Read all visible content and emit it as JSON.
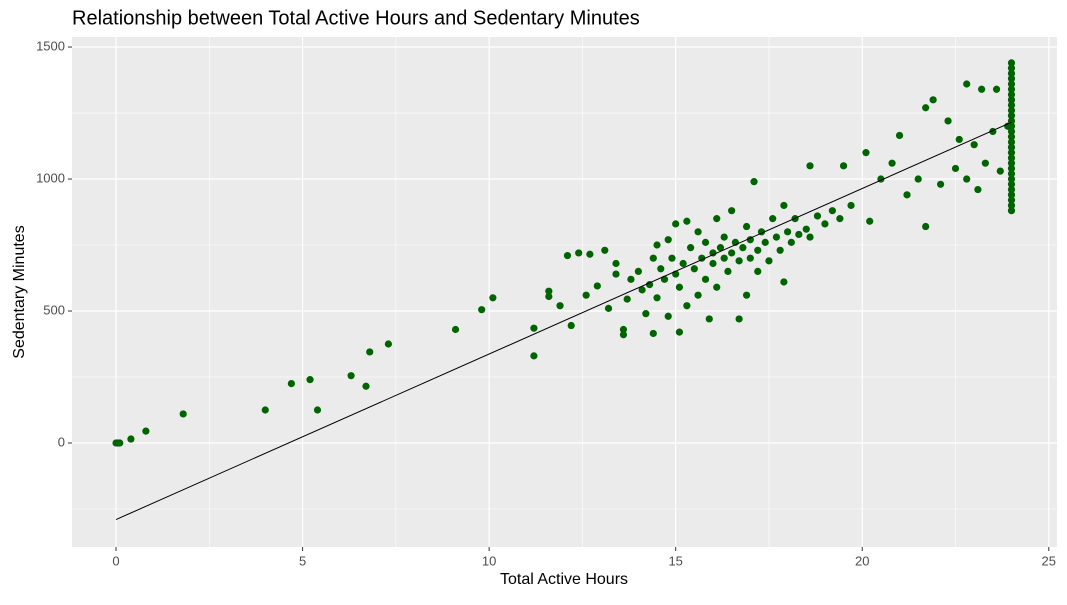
{
  "chart_data": {
    "type": "scatter",
    "title": "Relationship between Total Active Hours and Sedentary Minutes",
    "x_label": "Total Active Hours",
    "y_label": "Sedentary Minutes",
    "xlim": [
      -1.18,
      25.22
    ],
    "ylim": [
      -394,
      1538
    ],
    "xticks": [
      0,
      5,
      10,
      15,
      20,
      25
    ],
    "yticks": [
      0,
      500,
      1000,
      1500
    ],
    "grid": true,
    "series": [
      {
        "color": "#006400",
        "x": [
          0,
          0.05,
          0.1,
          0.4,
          0.8,
          1.8,
          4,
          4.7,
          5.2,
          5.4,
          6.3,
          6.7,
          6.8,
          7.3,
          9.1,
          9.8,
          10.1,
          11.2,
          11.2,
          11.6,
          11.6,
          11.9,
          12.1,
          12.2,
          12.4,
          12.6,
          12.7,
          12.9,
          13.1,
          13.2,
          13.4,
          13.4,
          13.6,
          13.6,
          13.7,
          13.8,
          14.0,
          14.1,
          14.2,
          14.3,
          14.4,
          14.4,
          14.5,
          14.5,
          14.6,
          14.7,
          14.8,
          14.8,
          14.9,
          15.0,
          15.0,
          15.1,
          15.1,
          15.2,
          15.3,
          15.3,
          15.4,
          15.5,
          15.6,
          15.6,
          15.7,
          15.8,
          15.8,
          15.9,
          16.0,
          16.0,
          16.1,
          16.1,
          16.2,
          16.3,
          16.3,
          16.4,
          16.5,
          16.5,
          16.6,
          16.7,
          16.7,
          16.8,
          16.9,
          16.9,
          17.0,
          17.0,
          17.1,
          17.2,
          17.2,
          17.3,
          17.4,
          17.5,
          17.6,
          17.7,
          17.8,
          17.9,
          17.9,
          18.0,
          18.1,
          18.2,
          18.3,
          18.5,
          18.6,
          18.6,
          18.8,
          19.0,
          19.2,
          19.4,
          19.5,
          19.7,
          20.1,
          20.2,
          20.5,
          20.8,
          21.0,
          21.2,
          21.5,
          21.7,
          21.7,
          21.9,
          22.1,
          22.3,
          22.5,
          22.6,
          22.8,
          22.8,
          23.0,
          23.1,
          23.2,
          23.3,
          23.5,
          23.6,
          23.7,
          23.9,
          24,
          24,
          24,
          24,
          24,
          24,
          24,
          24,
          24,
          24,
          24,
          24,
          24,
          24,
          24,
          24,
          24,
          24,
          24,
          24,
          24,
          24,
          24,
          24,
          24,
          24,
          24,
          24,
          24
        ],
        "values": [
          0,
          0,
          0,
          15,
          45,
          110,
          125,
          225,
          240,
          125,
          255,
          215,
          345,
          375,
          430,
          505,
          550,
          330,
          435,
          575,
          555,
          520,
          710,
          445,
          720,
          560,
          715,
          595,
          730,
          510,
          680,
          640,
          410,
          430,
          545,
          620,
          650,
          580,
          490,
          600,
          700,
          415,
          750,
          550,
          660,
          620,
          770,
          480,
          700,
          640,
          830,
          590,
          420,
          680,
          840,
          520,
          740,
          660,
          560,
          800,
          700,
          620,
          760,
          470,
          720,
          680,
          850,
          590,
          740,
          700,
          780,
          650,
          720,
          880,
          760,
          690,
          470,
          740,
          820,
          560,
          770,
          700,
          990,
          730,
          650,
          800,
          760,
          690,
          850,
          780,
          730,
          900,
          610,
          800,
          760,
          850,
          790,
          810,
          780,
          1050,
          860,
          830,
          880,
          850,
          1050,
          900,
          1100,
          840,
          1000,
          1060,
          1165,
          940,
          1000,
          1270,
          820,
          1300,
          980,
          1220,
          1040,
          1150,
          1360,
          1000,
          1130,
          960,
          1340,
          1060,
          1180,
          1340,
          1030,
          1200,
          880,
          900,
          920,
          940,
          960,
          980,
          1000,
          1020,
          1040,
          1060,
          1080,
          1100,
          1120,
          1140,
          1160,
          1180,
          1200,
          1220,
          1240,
          1260,
          1280,
          1300,
          1320,
          1340,
          1360,
          1380,
          1400,
          1420,
          1440
        ]
      }
    ],
    "fit_line": {
      "x": [
        0,
        24
      ],
      "values": [
        -290,
        1215
      ],
      "color": "#000000"
    }
  }
}
